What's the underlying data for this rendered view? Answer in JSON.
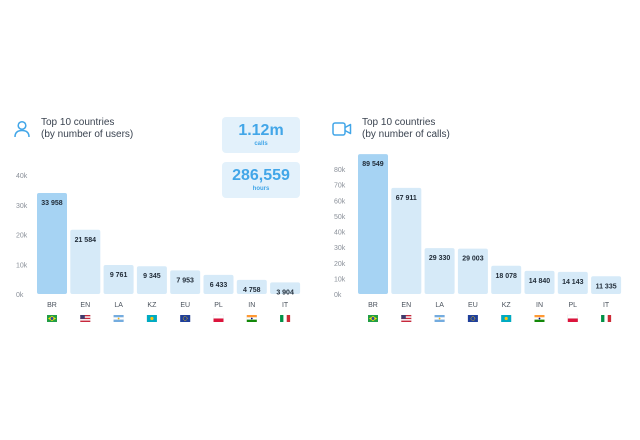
{
  "colors": {
    "accent": "#42a6e8",
    "bar_highlight": "#a6d3f3",
    "bar": "#d6eaf8",
    "card_bg": "#e3f1fb",
    "axis_text": "#8a9099"
  },
  "left_panel": {
    "icon": "user-icon",
    "title": "Top 10 countries\n(by number of users)",
    "stats": [
      {
        "value": "1.12m",
        "unit": "calls"
      },
      {
        "value": "286,559",
        "unit": "hours"
      }
    ]
  },
  "right_panel": {
    "icon": "video-camera-icon",
    "title": "Top 10 countries\n(by number of calls)"
  },
  "chart_data": [
    {
      "type": "bar",
      "categories": [
        "BR",
        "EN",
        "LA",
        "KZ",
        "EU",
        "PL",
        "IN",
        "IT"
      ],
      "flags": [
        "brazil-flag",
        "usa-flag",
        "argentina-flag",
        "kazakhstan-flag",
        "eu-flag",
        "poland-flag",
        "india-flag",
        "italy-flag"
      ],
      "values": [
        33958,
        21584,
        9761,
        9345,
        7953,
        6433,
        4758,
        3904
      ],
      "value_labels": [
        "33 958",
        "21 584",
        "9 761",
        "9 345",
        "7 953",
        "6 433",
        "4 758",
        "3 904"
      ],
      "yticks": [
        0,
        10000,
        20000,
        30000,
        40000
      ],
      "ytick_labels": [
        "0k",
        "10k",
        "20k",
        "30k",
        "40k"
      ],
      "ylim": [
        0,
        40000
      ],
      "grid": false
    },
    {
      "type": "bar",
      "categories": [
        "BR",
        "EN",
        "LA",
        "EU",
        "KZ",
        "IN",
        "PL",
        "IT"
      ],
      "flags": [
        "brazil-flag",
        "usa-flag",
        "argentina-flag",
        "eu-flag",
        "kazakhstan-flag",
        "india-flag",
        "poland-flag",
        "italy-flag"
      ],
      "values": [
        89549,
        67911,
        29330,
        29003,
        18078,
        14840,
        14143,
        11335
      ],
      "value_labels": [
        "89 549",
        "67 911",
        "29 330",
        "29 003",
        "18 078",
        "14 840",
        "14 143",
        "11 335"
      ],
      "yticks": [
        0,
        10000,
        20000,
        30000,
        40000,
        50000,
        60000,
        70000,
        80000
      ],
      "ytick_labels": [
        "0k",
        "10k",
        "20k",
        "30k",
        "40k",
        "50k",
        "60k",
        "70k",
        "80k"
      ],
      "ylim": [
        0,
        80000
      ],
      "grid": false
    }
  ]
}
